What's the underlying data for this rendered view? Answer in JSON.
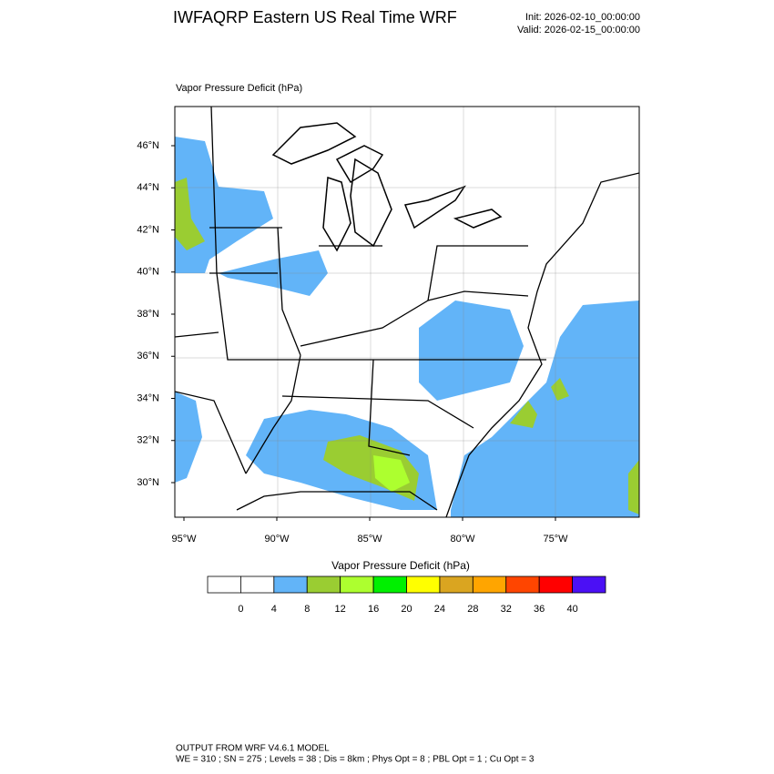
{
  "header": {
    "title": "IWFAQRP Eastern US Real Time WRF",
    "init": "Init: 2026-02-10_00:00:00",
    "valid": "Valid: 2026-02-15_00:00:00"
  },
  "map": {
    "field_label": "Vapor Pressure Deficit   (hPa)",
    "lat_labels": [
      "46°N",
      "44°N",
      "42°N",
      "40°N",
      "38°N",
      "36°N",
      "34°N",
      "32°N",
      "30°N"
    ],
    "lon_labels": [
      "95°W",
      "90°W",
      "85°W",
      "80°W",
      "75°W"
    ]
  },
  "colorbar": {
    "title": "Vapor Pressure Deficit  (hPa)",
    "colors": [
      "#ffffff",
      "#ffffff",
      "#62b4f8",
      "#9acd32",
      "#adff2f",
      "#00f000",
      "#ffff00",
      "#daa520",
      "#ffa500",
      "#ff4500",
      "#ff0000",
      "#4b10f5"
    ],
    "labels": [
      "0",
      "4",
      "8",
      "12",
      "16",
      "20",
      "24",
      "28",
      "32",
      "36",
      "40"
    ]
  },
  "footer": {
    "line1": "OUTPUT FROM WRF V4.6.1 MODEL",
    "line2": "WE = 310 ; SN = 275 ; Levels = 38 ; Dis = 8km ; Phys Opt = 8 ; PBL Opt = 1 ; Cu Opt = 3"
  }
}
